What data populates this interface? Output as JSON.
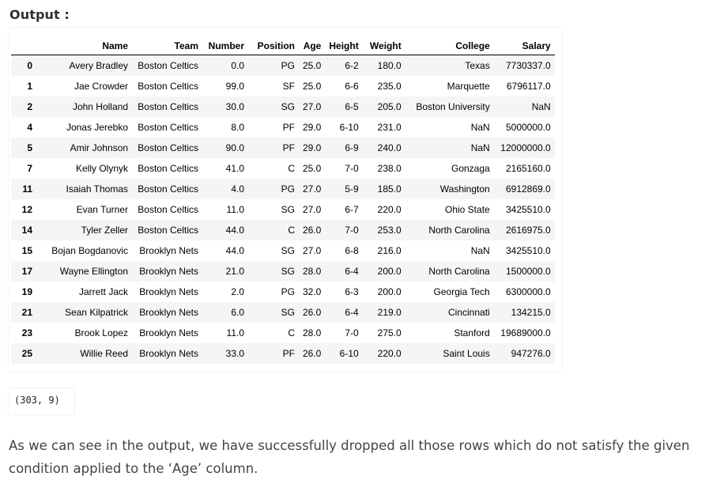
{
  "output_heading": "Output :",
  "dataframe": {
    "columns": [
      "",
      "Name",
      "Team",
      "Number",
      "Position",
      "Age",
      "Height",
      "Weight",
      "College",
      "Salary"
    ],
    "rows": [
      [
        "0",
        "Avery Bradley",
        "Boston Celtics",
        "0.0",
        "PG",
        "25.0",
        "6-2",
        "180.0",
        "Texas",
        "7730337.0"
      ],
      [
        "1",
        "Jae Crowder",
        "Boston Celtics",
        "99.0",
        "SF",
        "25.0",
        "6-6",
        "235.0",
        "Marquette",
        "6796117.0"
      ],
      [
        "2",
        "John Holland",
        "Boston Celtics",
        "30.0",
        "SG",
        "27.0",
        "6-5",
        "205.0",
        "Boston University",
        "NaN"
      ],
      [
        "4",
        "Jonas Jerebko",
        "Boston Celtics",
        "8.0",
        "PF",
        "29.0",
        "6-10",
        "231.0",
        "NaN",
        "5000000.0"
      ],
      [
        "5",
        "Amir Johnson",
        "Boston Celtics",
        "90.0",
        "PF",
        "29.0",
        "6-9",
        "240.0",
        "NaN",
        "12000000.0"
      ],
      [
        "7",
        "Kelly Olynyk",
        "Boston Celtics",
        "41.0",
        "C",
        "25.0",
        "7-0",
        "238.0",
        "Gonzaga",
        "2165160.0"
      ],
      [
        "11",
        "Isaiah Thomas",
        "Boston Celtics",
        "4.0",
        "PG",
        "27.0",
        "5-9",
        "185.0",
        "Washington",
        "6912869.0"
      ],
      [
        "12",
        "Evan Turner",
        "Boston Celtics",
        "11.0",
        "SG",
        "27.0",
        "6-7",
        "220.0",
        "Ohio State",
        "3425510.0"
      ],
      [
        "14",
        "Tyler Zeller",
        "Boston Celtics",
        "44.0",
        "C",
        "26.0",
        "7-0",
        "253.0",
        "North Carolina",
        "2616975.0"
      ],
      [
        "15",
        "Bojan Bogdanovic",
        "Brooklyn Nets",
        "44.0",
        "SG",
        "27.0",
        "6-8",
        "216.0",
        "NaN",
        "3425510.0"
      ],
      [
        "17",
        "Wayne Ellington",
        "Brooklyn Nets",
        "21.0",
        "SG",
        "28.0",
        "6-4",
        "200.0",
        "North Carolina",
        "1500000.0"
      ],
      [
        "19",
        "Jarrett Jack",
        "Brooklyn Nets",
        "2.0",
        "PG",
        "32.0",
        "6-3",
        "200.0",
        "Georgia Tech",
        "6300000.0"
      ],
      [
        "21",
        "Sean Kilpatrick",
        "Brooklyn Nets",
        "6.0",
        "SG",
        "26.0",
        "6-4",
        "219.0",
        "Cincinnati",
        "134215.0"
      ],
      [
        "23",
        "Brook Lopez",
        "Brooklyn Nets",
        "11.0",
        "C",
        "28.0",
        "7-0",
        "275.0",
        "Stanford",
        "19689000.0"
      ],
      [
        "25",
        "Willie Reed",
        "Brooklyn Nets",
        "33.0",
        "PF",
        "26.0",
        "6-10",
        "220.0",
        "Saint Louis",
        "947276.0"
      ]
    ]
  },
  "shape_output": "(303, 9)",
  "explanation": "As we can see in the output, we have successfully dropped all those rows which do not satisfy the given condition applied to the ‘Age’ column."
}
